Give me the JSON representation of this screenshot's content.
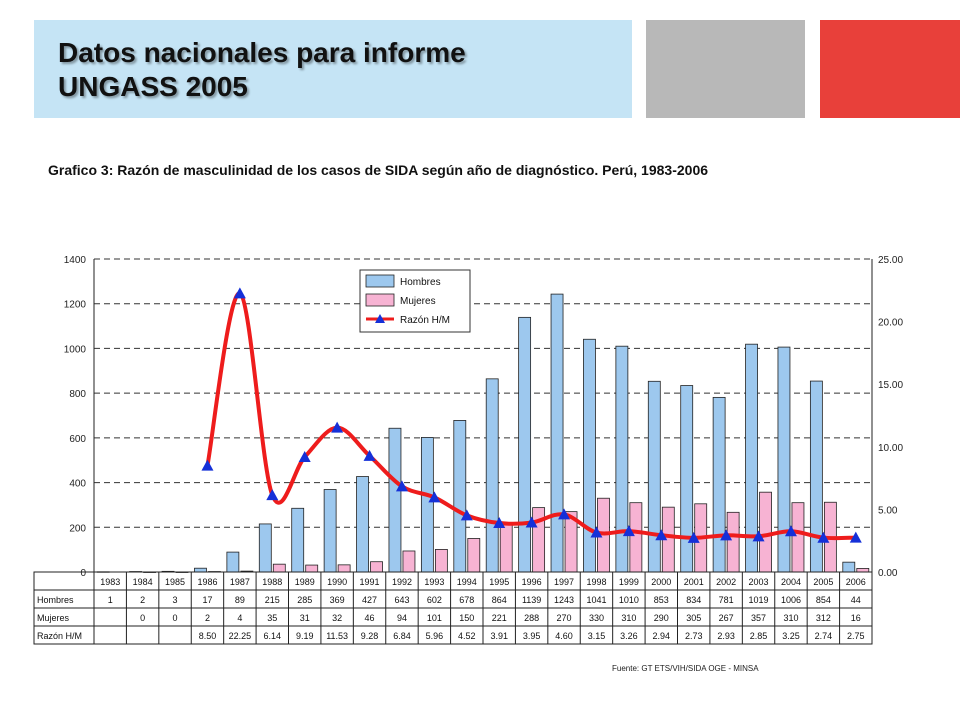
{
  "slide": {
    "title_line1": "Datos nacionales para informe",
    "title_line2": "UNGASS 2005",
    "subtitle": "Grafico 3: Razón de masculinidad de los casos de SIDA según año de diagnóstico. Perú, 1983-2006",
    "colors": {
      "title_box": "#c5e4f5",
      "gray_box": "#b8b8b8",
      "red_box": "#e8403a"
    }
  },
  "chart_data": {
    "type": "bar",
    "title": "",
    "categories": [
      "1983",
      "1984",
      "1985",
      "1986",
      "1987",
      "1988",
      "1989",
      "1990",
      "1991",
      "1992",
      "1993",
      "1994",
      "1995",
      "1996",
      "1997",
      "1998",
      "1999",
      "2000",
      "2001",
      "2002",
      "2003",
      "2004",
      "2005",
      "2006"
    ],
    "series": [
      {
        "name": "Hombres",
        "type": "bar",
        "axis": "left",
        "color": "#9dc8ee",
        "values": [
          1,
          2,
          3,
          17,
          89,
          215,
          285,
          369,
          427,
          643,
          602,
          678,
          864,
          1139,
          1243,
          1041,
          1010,
          853,
          834,
          781,
          1019,
          1006,
          854,
          44
        ]
      },
      {
        "name": "Mujeres",
        "type": "bar",
        "axis": "left",
        "color": "#f7b3d3",
        "values": [
          null,
          0,
          0,
          2,
          4,
          35,
          31,
          32,
          46,
          94,
          101,
          150,
          221,
          288,
          270,
          330,
          310,
          290,
          305,
          267,
          357,
          310,
          312,
          16
        ]
      },
      {
        "name": "Razón H/M",
        "type": "line",
        "axis": "right",
        "color": "#ee1c1c",
        "marker": "triangle",
        "marker_color": "#1530d8",
        "values": [
          null,
          null,
          null,
          8.5,
          22.25,
          6.14,
          9.19,
          11.53,
          9.28,
          6.84,
          5.96,
          4.52,
          3.91,
          3.95,
          4.6,
          3.15,
          3.26,
          2.94,
          2.73,
          2.93,
          2.85,
          3.25,
          2.74,
          2.75
        ]
      }
    ],
    "table_rows": [
      {
        "label": "Hombres",
        "cells": [
          "1",
          "2",
          "3",
          "17",
          "89",
          "215",
          "285",
          "369",
          "427",
          "643",
          "602",
          "678",
          "864",
          "1139",
          "1243",
          "1041",
          "1010",
          "853",
          "834",
          "781",
          "1019",
          "1006",
          "854",
          "44"
        ]
      },
      {
        "label": "Mujeres",
        "cells": [
          "",
          "0",
          "0",
          "2",
          "4",
          "35",
          "31",
          "32",
          "46",
          "94",
          "101",
          "150",
          "221",
          "288",
          "270",
          "330",
          "310",
          "290",
          "305",
          "267",
          "357",
          "310",
          "312",
          "16"
        ]
      },
      {
        "label": "Razón H/M",
        "cells": [
          "",
          "",
          "",
          "8.50",
          "22.25",
          "6.14",
          "9.19",
          "11.53",
          "9.28",
          "6.84",
          "5.96",
          "4.52",
          "3.91",
          "3.95",
          "4.60",
          "3.15",
          "3.26",
          "2.94",
          "2.73",
          "2.93",
          "2.85",
          "3.25",
          "2.74",
          "2.75"
        ]
      }
    ],
    "y_left": {
      "min": 0,
      "max": 1400,
      "ticks": [
        "0",
        "200",
        "400",
        "600",
        "800",
        "1000",
        "1200",
        "1400"
      ]
    },
    "y_right": {
      "min": 0,
      "max": 25,
      "ticks": [
        "0.00",
        "5.00",
        "10.00",
        "15.00",
        "20.00",
        "25.00"
      ]
    },
    "grid": true,
    "legend_position": "top-center",
    "source": "Fuente: GT ETS/VIH/SIDA OGE - MINSA"
  }
}
